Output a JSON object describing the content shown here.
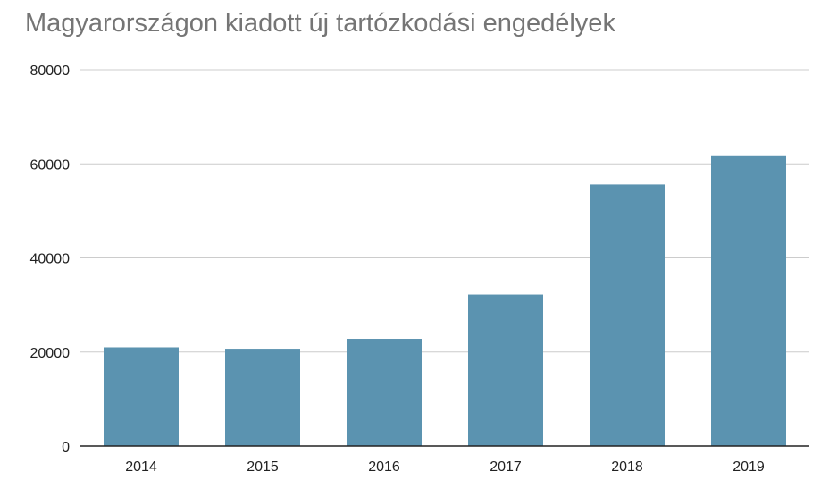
{
  "chart_data": {
    "type": "bar",
    "title": "Magyarországon kiadott új tartózkodási engedélyek",
    "xlabel": "",
    "ylabel": "",
    "categories": [
      "2014",
      "2015",
      "2016",
      "2017",
      "2018",
      "2019"
    ],
    "values": [
      21000,
      20700,
      22800,
      32200,
      55600,
      61800
    ],
    "ylim": [
      0,
      80000
    ],
    "yticks": [
      0,
      20000,
      40000,
      60000,
      80000
    ],
    "ytick_labels": [
      "0",
      "20000",
      "40000",
      "60000",
      "80000"
    ],
    "grid": true,
    "legend": "none",
    "bar_color": "#5b93b0",
    "grid_color": "#cccccc",
    "axis_color": "#222222",
    "title_color": "#757575"
  }
}
